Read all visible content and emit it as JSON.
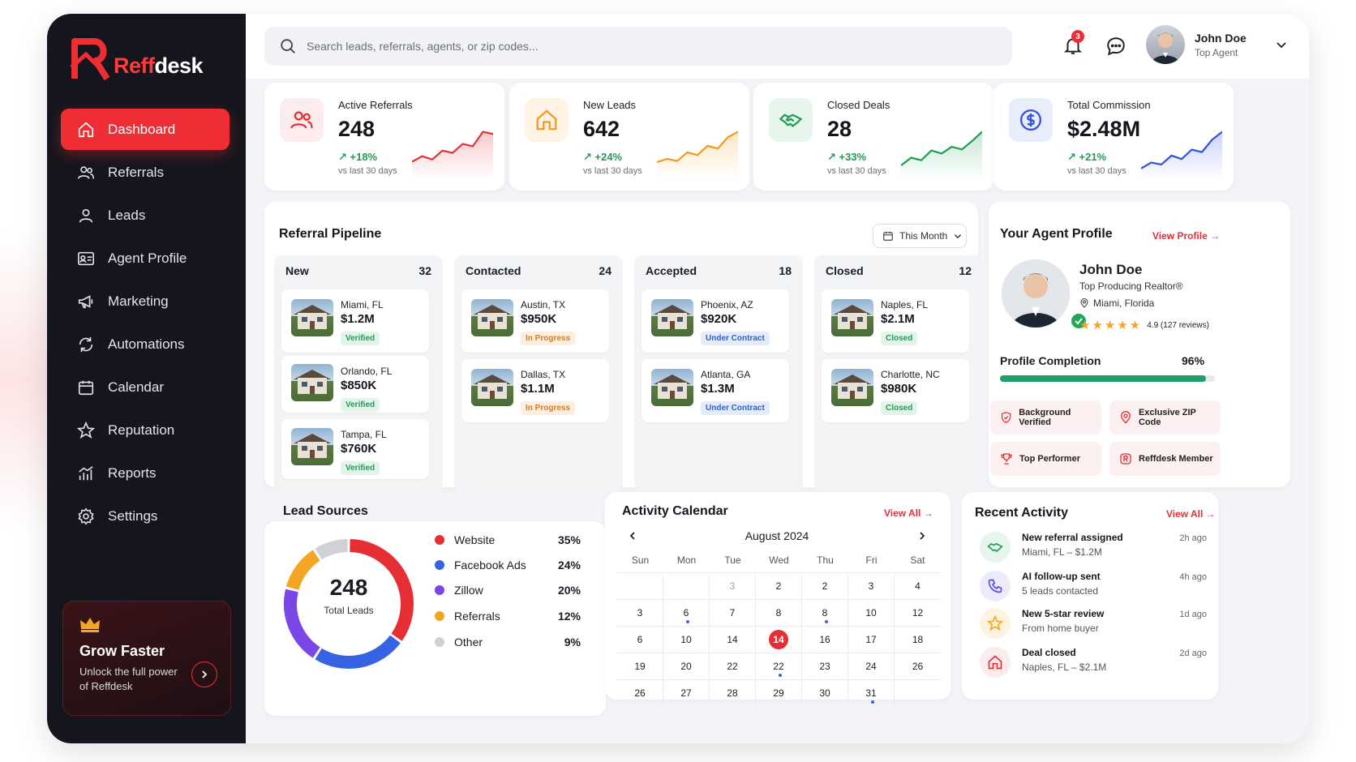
{
  "brand": {
    "name_a": "Reff",
    "name_b": "desk"
  },
  "sidebar": {
    "items": [
      {
        "label": "Dashboard",
        "icon": "home-icon",
        "active": true
      },
      {
        "label": "Referrals",
        "icon": "users-icon"
      },
      {
        "label": "Leads",
        "icon": "user-icon"
      },
      {
        "label": "Agent Profile",
        "icon": "id-card-icon"
      },
      {
        "label": "Marketing",
        "icon": "megaphone-icon"
      },
      {
        "label": "Automations",
        "icon": "refresh-icon"
      },
      {
        "label": "Calendar",
        "icon": "calendar-icon"
      },
      {
        "label": "Reputation",
        "icon": "star-icon"
      },
      {
        "label": "Reports",
        "icon": "chart-icon"
      },
      {
        "label": "Settings",
        "icon": "gear-icon"
      }
    ],
    "promo": {
      "title": "Grow Faster",
      "text": "Unlock the full power of Reffdesk"
    }
  },
  "header": {
    "search_placeholder": "Search leads, referrals, agents, or zip codes...",
    "notifications": "3",
    "user_name": "John Doe",
    "user_role": "Top Agent"
  },
  "stats": [
    {
      "label": "Active Referrals",
      "value": "248",
      "change": "↗ +18%",
      "sub": "vs last 30 days",
      "color": "#e62e34",
      "bg": "#fdeced",
      "icon": "users-icon",
      "trend": [
        3,
        4,
        3.4,
        5,
        4.6,
        6.2,
        5.8,
        8.4,
        8
      ]
    },
    {
      "label": "New Leads",
      "value": "642",
      "change": "↗ +24%",
      "sub": "vs last 30 days",
      "color": "#f29b1a",
      "bg": "#fef3e4",
      "icon": "house-icon",
      "trend": [
        3,
        3.6,
        3.2,
        4.8,
        4.3,
        6,
        5.5,
        7.6,
        8.6
      ]
    },
    {
      "label": "Closed Deals",
      "value": "28",
      "change": "↗ +33%",
      "sub": "vs last 30 days",
      "color": "#1f9e52",
      "bg": "#e6f6ec",
      "icon": "handshake-icon",
      "trend": [
        2.5,
        4,
        3.5,
        5.4,
        4.8,
        6.1,
        5.6,
        7.2,
        9
      ]
    },
    {
      "label": "Total Commission",
      "value": "$2.48M",
      "change": "↗ +21%",
      "sub": "vs last 30 days",
      "color": "#3350e0",
      "bg": "#e8edfc",
      "icon": "dollar-icon",
      "trend": [
        2,
        3.2,
        2.8,
        4.6,
        3.9,
        5.8,
        5.3,
        7.8,
        9.4
      ]
    }
  ],
  "pipeline": {
    "title": "Referral Pipeline",
    "filter": "This Month",
    "columns": [
      {
        "name": "New",
        "count": "32",
        "cards": [
          {
            "city": "Miami, FL",
            "price": "$1.2M",
            "status": "Verified",
            "kind": "green"
          },
          {
            "city": "Orlando, FL",
            "price": "$850K",
            "status": "Verified",
            "kind": "green"
          },
          {
            "city": "Tampa, FL",
            "price": "$760K",
            "status": "Verified",
            "kind": "green"
          }
        ]
      },
      {
        "name": "Contacted",
        "count": "24",
        "cards": [
          {
            "city": "Austin, TX",
            "price": "$950K",
            "status": "In Progress",
            "kind": "orange"
          },
          {
            "city": "Dallas, TX",
            "price": "$1.1M",
            "status": "In Progress",
            "kind": "orange"
          }
        ]
      },
      {
        "name": "Accepted",
        "count": "18",
        "cards": [
          {
            "city": "Phoenix, AZ",
            "price": "$920K",
            "status": "Under Contract",
            "kind": "blue"
          },
          {
            "city": "Atlanta, GA",
            "price": "$1.3M",
            "status": "Under Contract",
            "kind": "blue"
          }
        ]
      },
      {
        "name": "Closed",
        "count": "12",
        "cards": [
          {
            "city": "Naples, FL",
            "price": "$2.1M",
            "status": "Closed",
            "kind": "green"
          },
          {
            "city": "Charlotte, NC",
            "price": "$980K",
            "status": "Closed",
            "kind": "green"
          }
        ]
      }
    ]
  },
  "profile": {
    "title": "Your Agent Profile",
    "view_link": "View Profile →",
    "name": "John Doe",
    "role": "Top Producing Realtor®",
    "location": "Miami, Florida",
    "rating": "4.9 (127 reviews)",
    "stars": 5,
    "completion_label": "Profile Completion",
    "completion_value": "96%",
    "completion_fraction": 0.96,
    "chips": [
      "Background Verified",
      "Exclusive ZIP Code",
      "Top Performer",
      "Reffdesk Member"
    ]
  },
  "lead_sources": {
    "title": "Lead Sources",
    "total": "248",
    "total_label": "Total Leads",
    "items": [
      {
        "name": "Website",
        "pct": "35%",
        "value": 35,
        "color": "#e62e34"
      },
      {
        "name": "Facebook Ads",
        "pct": "24%",
        "value": 24,
        "color": "#3563e3"
      },
      {
        "name": "Zillow",
        "pct": "20%",
        "value": 20,
        "color": "#7a46e6"
      },
      {
        "name": "Referrals",
        "pct": "12%",
        "value": 12,
        "color": "#f5a524"
      },
      {
        "name": "Other",
        "pct": "9%",
        "value": 9,
        "color": "#cfd1d6"
      }
    ]
  },
  "calendar": {
    "title": "Activity Calendar",
    "view_all": "View All →",
    "month": "August 2024",
    "days": [
      "Sun",
      "Mon",
      "Tue",
      "Wed",
      "Thu",
      "Fri",
      "Sat"
    ],
    "weeks": [
      [
        "",
        "",
        "3",
        "2",
        "2",
        "3",
        "4"
      ],
      [
        "3",
        "6",
        "7",
        "8",
        "8",
        "10",
        "12"
      ],
      [
        "6",
        "10",
        "14",
        "14",
        "16",
        "17",
        "18"
      ],
      [
        "19",
        "20",
        "22",
        "22",
        "23",
        "24",
        "26"
      ],
      [
        "26",
        "27",
        "28",
        "29",
        "30",
        "31",
        ""
      ]
    ],
    "today": "14"
  },
  "activity": {
    "title": "Recent Activity",
    "view_all": "View All →",
    "items": [
      {
        "title": "New referral assigned",
        "desc": "Miami, FL – $1.2M",
        "time": "2h ago",
        "icon": "handshake-icon",
        "color": "#1f9e52",
        "bg": "#e6f6ec"
      },
      {
        "title": "AI follow-up sent",
        "desc": "5 leads contacted",
        "time": "4h ago",
        "icon": "phone-icon",
        "color": "#5b4be0",
        "bg": "#ecebfc"
      },
      {
        "title": "New 5-star review",
        "desc": "From home buyer",
        "time": "1d ago",
        "icon": "star-icon",
        "color": "#f5a524",
        "bg": "#fef3e1"
      },
      {
        "title": "Deal closed",
        "desc": "Naples, FL – $2.1M",
        "time": "2d ago",
        "icon": "house-icon",
        "color": "#e62e34",
        "bg": "#fdeced"
      }
    ]
  }
}
